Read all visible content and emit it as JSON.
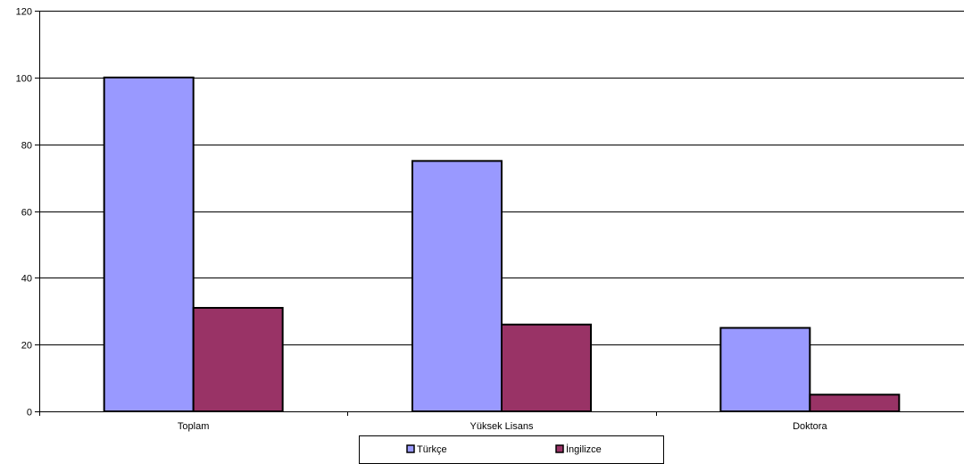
{
  "chart_data": {
    "type": "bar",
    "title": "",
    "xlabel": "",
    "ylabel": "",
    "categories": [
      "Toplam",
      "Yüksek Lisans",
      "Doktora"
    ],
    "series": [
      {
        "name": "Türkçe",
        "color": "#9999FF",
        "values": [
          100,
          75,
          25
        ]
      },
      {
        "name": "İngilizce",
        "color": "#993366",
        "values": [
          31,
          26,
          5
        ]
      }
    ],
    "ylim": [
      0,
      120
    ],
    "yticks": [
      0,
      20,
      40,
      60,
      80,
      100,
      120
    ],
    "grid": true,
    "legend_position": "bottom"
  }
}
